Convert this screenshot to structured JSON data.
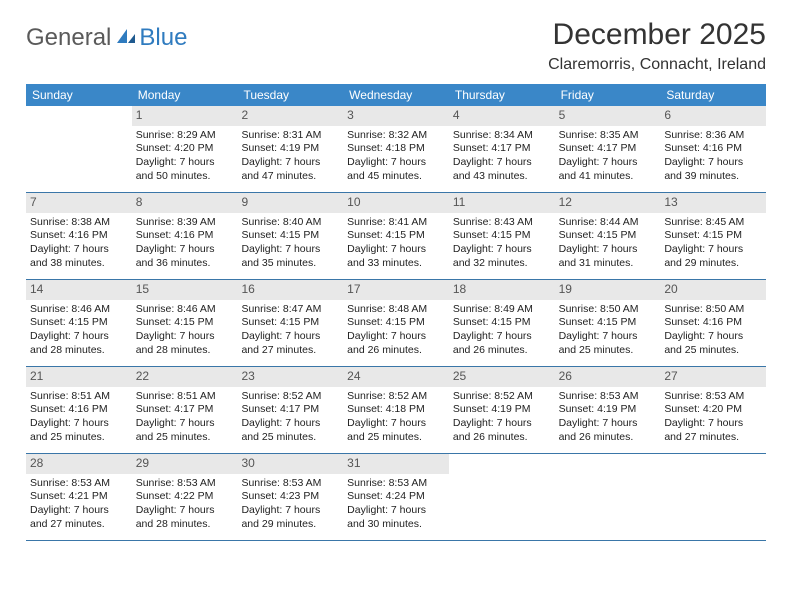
{
  "brand": {
    "part1": "General",
    "part2": "Blue"
  },
  "title": "December 2025",
  "location": "Claremorris, Connacht, Ireland",
  "colors": {
    "header_bg": "#3a87c8",
    "header_text": "#ffffff",
    "daynum_bg": "#e8e8e8",
    "row_border": "#3a76a8",
    "logo_gray": "#5a5a5a",
    "logo_blue": "#2f7bbf"
  },
  "days_of_week": [
    "Sunday",
    "Monday",
    "Tuesday",
    "Wednesday",
    "Thursday",
    "Friday",
    "Saturday"
  ],
  "weeks": [
    [
      {
        "num": "",
        "empty": true
      },
      {
        "num": "1",
        "sunrise": "Sunrise: 8:29 AM",
        "sunset": "Sunset: 4:20 PM",
        "daylight": "Daylight: 7 hours and 50 minutes."
      },
      {
        "num": "2",
        "sunrise": "Sunrise: 8:31 AM",
        "sunset": "Sunset: 4:19 PM",
        "daylight": "Daylight: 7 hours and 47 minutes."
      },
      {
        "num": "3",
        "sunrise": "Sunrise: 8:32 AM",
        "sunset": "Sunset: 4:18 PM",
        "daylight": "Daylight: 7 hours and 45 minutes."
      },
      {
        "num": "4",
        "sunrise": "Sunrise: 8:34 AM",
        "sunset": "Sunset: 4:17 PM",
        "daylight": "Daylight: 7 hours and 43 minutes."
      },
      {
        "num": "5",
        "sunrise": "Sunrise: 8:35 AM",
        "sunset": "Sunset: 4:17 PM",
        "daylight": "Daylight: 7 hours and 41 minutes."
      },
      {
        "num": "6",
        "sunrise": "Sunrise: 8:36 AM",
        "sunset": "Sunset: 4:16 PM",
        "daylight": "Daylight: 7 hours and 39 minutes."
      }
    ],
    [
      {
        "num": "7",
        "sunrise": "Sunrise: 8:38 AM",
        "sunset": "Sunset: 4:16 PM",
        "daylight": "Daylight: 7 hours and 38 minutes."
      },
      {
        "num": "8",
        "sunrise": "Sunrise: 8:39 AM",
        "sunset": "Sunset: 4:16 PM",
        "daylight": "Daylight: 7 hours and 36 minutes."
      },
      {
        "num": "9",
        "sunrise": "Sunrise: 8:40 AM",
        "sunset": "Sunset: 4:15 PM",
        "daylight": "Daylight: 7 hours and 35 minutes."
      },
      {
        "num": "10",
        "sunrise": "Sunrise: 8:41 AM",
        "sunset": "Sunset: 4:15 PM",
        "daylight": "Daylight: 7 hours and 33 minutes."
      },
      {
        "num": "11",
        "sunrise": "Sunrise: 8:43 AM",
        "sunset": "Sunset: 4:15 PM",
        "daylight": "Daylight: 7 hours and 32 minutes."
      },
      {
        "num": "12",
        "sunrise": "Sunrise: 8:44 AM",
        "sunset": "Sunset: 4:15 PM",
        "daylight": "Daylight: 7 hours and 31 minutes."
      },
      {
        "num": "13",
        "sunrise": "Sunrise: 8:45 AM",
        "sunset": "Sunset: 4:15 PM",
        "daylight": "Daylight: 7 hours and 29 minutes."
      }
    ],
    [
      {
        "num": "14",
        "sunrise": "Sunrise: 8:46 AM",
        "sunset": "Sunset: 4:15 PM",
        "daylight": "Daylight: 7 hours and 28 minutes."
      },
      {
        "num": "15",
        "sunrise": "Sunrise: 8:46 AM",
        "sunset": "Sunset: 4:15 PM",
        "daylight": "Daylight: 7 hours and 28 minutes."
      },
      {
        "num": "16",
        "sunrise": "Sunrise: 8:47 AM",
        "sunset": "Sunset: 4:15 PM",
        "daylight": "Daylight: 7 hours and 27 minutes."
      },
      {
        "num": "17",
        "sunrise": "Sunrise: 8:48 AM",
        "sunset": "Sunset: 4:15 PM",
        "daylight": "Daylight: 7 hours and 26 minutes."
      },
      {
        "num": "18",
        "sunrise": "Sunrise: 8:49 AM",
        "sunset": "Sunset: 4:15 PM",
        "daylight": "Daylight: 7 hours and 26 minutes."
      },
      {
        "num": "19",
        "sunrise": "Sunrise: 8:50 AM",
        "sunset": "Sunset: 4:15 PM",
        "daylight": "Daylight: 7 hours and 25 minutes."
      },
      {
        "num": "20",
        "sunrise": "Sunrise: 8:50 AM",
        "sunset": "Sunset: 4:16 PM",
        "daylight": "Daylight: 7 hours and 25 minutes."
      }
    ],
    [
      {
        "num": "21",
        "sunrise": "Sunrise: 8:51 AM",
        "sunset": "Sunset: 4:16 PM",
        "daylight": "Daylight: 7 hours and 25 minutes."
      },
      {
        "num": "22",
        "sunrise": "Sunrise: 8:51 AM",
        "sunset": "Sunset: 4:17 PM",
        "daylight": "Daylight: 7 hours and 25 minutes."
      },
      {
        "num": "23",
        "sunrise": "Sunrise: 8:52 AM",
        "sunset": "Sunset: 4:17 PM",
        "daylight": "Daylight: 7 hours and 25 minutes."
      },
      {
        "num": "24",
        "sunrise": "Sunrise: 8:52 AM",
        "sunset": "Sunset: 4:18 PM",
        "daylight": "Daylight: 7 hours and 25 minutes."
      },
      {
        "num": "25",
        "sunrise": "Sunrise: 8:52 AM",
        "sunset": "Sunset: 4:19 PM",
        "daylight": "Daylight: 7 hours and 26 minutes."
      },
      {
        "num": "26",
        "sunrise": "Sunrise: 8:53 AM",
        "sunset": "Sunset: 4:19 PM",
        "daylight": "Daylight: 7 hours and 26 minutes."
      },
      {
        "num": "27",
        "sunrise": "Sunrise: 8:53 AM",
        "sunset": "Sunset: 4:20 PM",
        "daylight": "Daylight: 7 hours and 27 minutes."
      }
    ],
    [
      {
        "num": "28",
        "sunrise": "Sunrise: 8:53 AM",
        "sunset": "Sunset: 4:21 PM",
        "daylight": "Daylight: 7 hours and 27 minutes."
      },
      {
        "num": "29",
        "sunrise": "Sunrise: 8:53 AM",
        "sunset": "Sunset: 4:22 PM",
        "daylight": "Daylight: 7 hours and 28 minutes."
      },
      {
        "num": "30",
        "sunrise": "Sunrise: 8:53 AM",
        "sunset": "Sunset: 4:23 PM",
        "daylight": "Daylight: 7 hours and 29 minutes."
      },
      {
        "num": "31",
        "sunrise": "Sunrise: 8:53 AM",
        "sunset": "Sunset: 4:24 PM",
        "daylight": "Daylight: 7 hours and 30 minutes."
      },
      {
        "num": "",
        "empty": true
      },
      {
        "num": "",
        "empty": true
      },
      {
        "num": "",
        "empty": true
      }
    ]
  ]
}
